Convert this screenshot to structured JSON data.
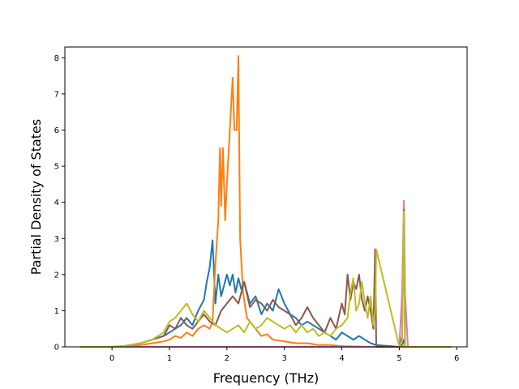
{
  "chart_data": {
    "type": "line",
    "title": "",
    "xlabel": "Frequency (THz)",
    "ylabel": "Partial Density of States",
    "xlim": [
      -0.82,
      6.18
    ],
    "ylim": [
      0,
      8.3
    ],
    "xticks": [
      0,
      1,
      2,
      3,
      4,
      5,
      6
    ],
    "yticks": [
      0,
      1,
      2,
      3,
      4,
      5,
      6,
      7,
      8
    ],
    "grid": false,
    "legend": "none",
    "series": [
      {
        "color": "#1f77b4",
        "x": [
          -0.55,
          0.0,
          0.2,
          0.5,
          0.7,
          0.9,
          1.0,
          1.1,
          1.2,
          1.3,
          1.4,
          1.5,
          1.6,
          1.65,
          1.7,
          1.75,
          1.8,
          1.85,
          1.9,
          1.95,
          2.0,
          2.05,
          2.1,
          2.15,
          2.2,
          2.25,
          2.3,
          2.4,
          2.5,
          2.6,
          2.7,
          2.8,
          2.9,
          3.0,
          3.1,
          3.2,
          3.3,
          3.4,
          3.5,
          3.6,
          3.7,
          3.8,
          3.9,
          4.0,
          4.1,
          4.2,
          4.3,
          4.4,
          4.5,
          4.6,
          5.0,
          5.05,
          5.08,
          5.1,
          5.5,
          5.9
        ],
        "y": [
          0,
          0,
          0.02,
          0.1,
          0.2,
          0.3,
          0.4,
          0.5,
          0.6,
          0.8,
          0.6,
          1.0,
          1.3,
          1.8,
          2.2,
          2.95,
          1.2,
          2.0,
          1.4,
          1.7,
          2.0,
          1.7,
          2.0,
          1.5,
          1.9,
          1.6,
          1.8,
          1.2,
          1.4,
          0.9,
          1.2,
          1.0,
          1.6,
          1.2,
          0.9,
          0.8,
          0.6,
          0.7,
          0.6,
          0.5,
          0.4,
          0.3,
          0.2,
          0.4,
          0.3,
          0.2,
          0.3,
          0.2,
          0.1,
          0.05,
          0,
          0.05,
          0.2,
          0,
          0,
          0
        ]
      },
      {
        "color": "#ff7f0e",
        "x": [
          -0.55,
          0.0,
          0.2,
          0.5,
          0.7,
          0.9,
          1.0,
          1.1,
          1.2,
          1.3,
          1.4,
          1.5,
          1.6,
          1.7,
          1.75,
          1.8,
          1.85,
          1.88,
          1.9,
          1.93,
          1.97,
          2.0,
          2.05,
          2.1,
          2.13,
          2.17,
          2.2,
          2.23,
          2.28,
          2.35,
          2.5,
          2.6,
          2.7,
          2.8,
          3.0,
          3.2,
          3.4,
          3.6,
          3.8,
          4.0,
          4.3,
          4.6,
          5.0,
          5.5,
          5.9
        ],
        "y": [
          0,
          0,
          0.01,
          0.05,
          0.1,
          0.15,
          0.2,
          0.3,
          0.25,
          0.4,
          0.3,
          0.5,
          0.6,
          0.5,
          0.7,
          2.3,
          3.5,
          5.5,
          3.9,
          5.5,
          3.5,
          4.5,
          6.0,
          7.45,
          6.0,
          6.0,
          8.05,
          3.0,
          1.5,
          0.8,
          0.5,
          0.3,
          0.35,
          0.2,
          0.15,
          0.1,
          0.1,
          0.05,
          0.05,
          0.02,
          0.01,
          0,
          0,
          0,
          0
        ]
      },
      {
        "color": "#e377c2",
        "x": [
          -0.55,
          5.0,
          5.05,
          5.08,
          5.1,
          5.15,
          5.9
        ],
        "y": [
          0,
          0,
          1.5,
          4.05,
          1.5,
          0,
          0
        ]
      },
      {
        "color": "#8c564b",
        "x": [
          -0.55,
          0.0,
          0.2,
          0.5,
          0.7,
          0.9,
          1.0,
          1.1,
          1.2,
          1.3,
          1.4,
          1.5,
          1.6,
          1.7,
          1.8,
          1.9,
          2.0,
          2.1,
          2.2,
          2.3,
          2.4,
          2.5,
          2.6,
          2.7,
          2.8,
          2.9,
          3.0,
          3.1,
          3.2,
          3.3,
          3.4,
          3.5,
          3.6,
          3.7,
          3.8,
          3.9,
          4.0,
          4.05,
          4.1,
          4.15,
          4.2,
          4.25,
          4.3,
          4.35,
          4.4,
          4.45,
          4.5,
          4.55,
          4.58,
          4.6,
          5.0,
          5.05,
          5.08,
          5.1,
          5.5,
          5.9
        ],
        "y": [
          0,
          0,
          0.02,
          0.1,
          0.2,
          0.3,
          0.6,
          0.5,
          0.8,
          0.6,
          0.5,
          0.7,
          0.9,
          0.7,
          0.6,
          1.0,
          1.2,
          1.4,
          1.2,
          1.8,
          1.1,
          1.3,
          1.2,
          1.0,
          1.3,
          1.1,
          1.0,
          0.9,
          0.6,
          0.8,
          1.1,
          0.8,
          0.6,
          0.4,
          0.8,
          0.5,
          1.2,
          0.9,
          2.0,
          1.3,
          1.8,
          1.6,
          2.0,
          1.3,
          1.0,
          1.4,
          1.0,
          0.5,
          2.7,
          0,
          0,
          0.3,
          3.8,
          0,
          0,
          0
        ]
      },
      {
        "color": "#bcbd22",
        "x": [
          -0.55,
          0.0,
          0.2,
          0.5,
          0.7,
          0.9,
          1.0,
          1.1,
          1.2,
          1.3,
          1.4,
          1.5,
          1.6,
          1.7,
          1.8,
          1.9,
          2.0,
          2.1,
          2.2,
          2.3,
          2.4,
          2.5,
          2.6,
          2.7,
          2.8,
          2.9,
          3.0,
          3.1,
          3.2,
          3.3,
          3.4,
          3.5,
          3.6,
          3.7,
          3.8,
          3.9,
          4.0,
          4.1,
          4.15,
          4.2,
          4.25,
          4.3,
          4.35,
          4.4,
          4.45,
          4.5,
          4.55,
          4.58,
          4.6,
          5.0,
          5.05,
          5.08,
          5.1,
          5.5,
          5.9
        ],
        "y": [
          0,
          0,
          0.02,
          0.1,
          0.2,
          0.4,
          0.7,
          0.8,
          1.0,
          1.2,
          0.9,
          0.7,
          1.0,
          0.8,
          0.6,
          0.5,
          0.4,
          0.5,
          0.6,
          0.4,
          0.7,
          0.5,
          0.6,
          0.8,
          0.7,
          0.6,
          0.5,
          0.6,
          0.4,
          0.6,
          0.4,
          0.5,
          0.3,
          0.4,
          0.3,
          0.5,
          0.6,
          0.8,
          1.5,
          1.9,
          1.0,
          1.2,
          1.8,
          1.2,
          0.8,
          1.4,
          0.6,
          1.0,
          2.7,
          0,
          0.2,
          3.75,
          0,
          0,
          0
        ]
      }
    ]
  }
}
